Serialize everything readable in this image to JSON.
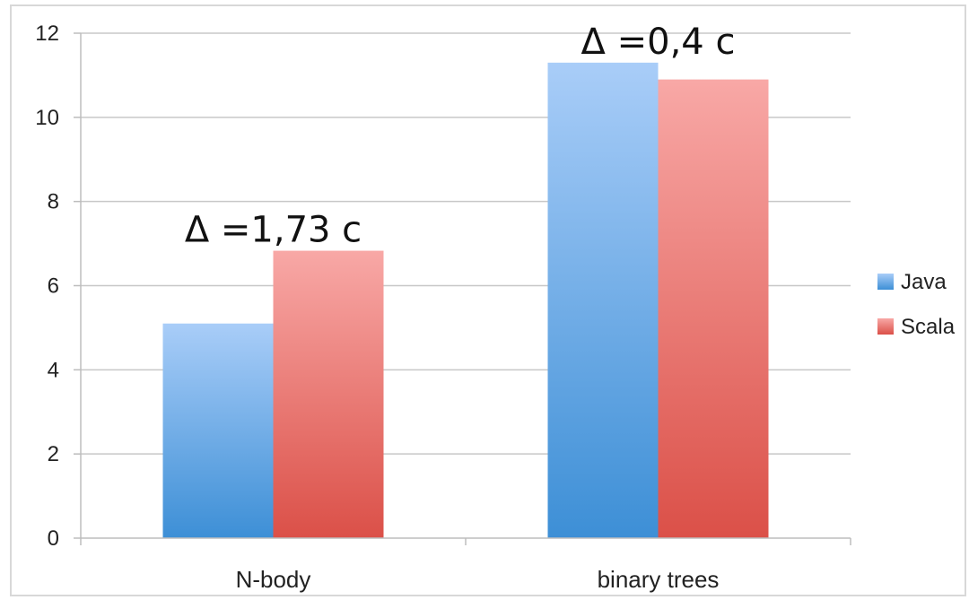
{
  "chart_data": {
    "type": "bar",
    "categories": [
      "N-body",
      "binary trees"
    ],
    "series": [
      {
        "name": "Java",
        "values": [
          5.1,
          11.3
        ],
        "color": "#4a90d9"
      },
      {
        "name": "Scala",
        "values": [
          6.83,
          10.9
        ],
        "color": "#e05a50"
      }
    ],
    "ylim": [
      0,
      12
    ],
    "yticks": [
      0,
      2,
      4,
      6,
      8,
      10,
      12
    ],
    "grid": true,
    "legend": "right",
    "annotations": [
      {
        "category": "N-body",
        "text": "Δ =1,73 c"
      },
      {
        "category": "binary trees",
        "text": "Δ =0,4 c"
      }
    ]
  }
}
